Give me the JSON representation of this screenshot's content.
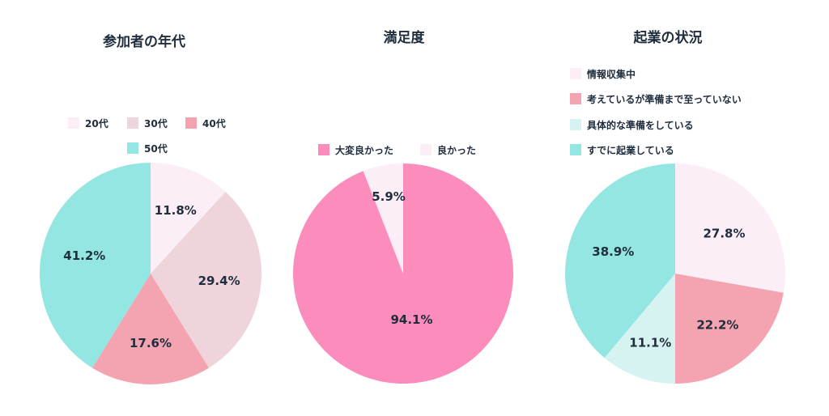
{
  "chart_data": [
    {
      "type": "pie",
      "title": "参加者の年代",
      "categories": [
        "20代",
        "30代",
        "40代",
        "50代"
      ],
      "values": [
        11.8,
        29.4,
        17.6,
        41.2
      ],
      "labels": [
        "11.8%",
        "29.4%",
        "17.6%",
        "41.2%"
      ],
      "colors": [
        "#fbeef6",
        "#efd4dc",
        "#f4a4b0",
        "#94e6e3"
      ],
      "legend_position": "top"
    },
    {
      "type": "pie",
      "title": "満足度",
      "categories": [
        "大変良かった",
        "良かった"
      ],
      "values": [
        94.1,
        5.9
      ],
      "labels": [
        "94.1%",
        "5.9%"
      ],
      "colors": [
        "#fb8cbc",
        "#fbeef6"
      ],
      "legend_position": "top"
    },
    {
      "type": "pie",
      "title": "起業の状況",
      "categories": [
        "情報収集中",
        "考えているが準備まで至っていない",
        "具体的な準備をしている",
        "すでに起業している"
      ],
      "values": [
        27.8,
        22.2,
        11.1,
        38.9
      ],
      "labels": [
        "27.8%",
        "22.2%",
        "11.1%",
        "38.9%"
      ],
      "colors": [
        "#fbeef6",
        "#f4a4b0",
        "#d6f3f1",
        "#94e6e3"
      ],
      "legend_position": "top"
    }
  ]
}
